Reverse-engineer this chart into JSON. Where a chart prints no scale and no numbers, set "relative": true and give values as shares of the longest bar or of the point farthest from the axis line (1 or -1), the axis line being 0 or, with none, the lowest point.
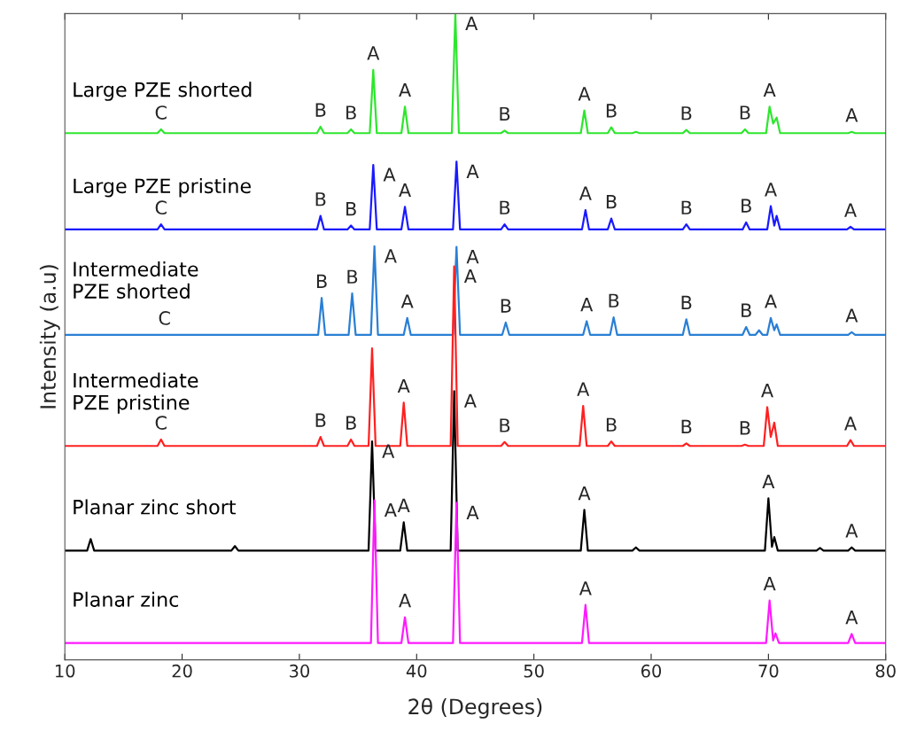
{
  "chart_data": {
    "type": "line",
    "relative": true,
    "xlabel": "2θ (Degrees)",
    "ylabel": "Intensity (a.u)",
    "xlim": [
      10,
      80
    ],
    "xticks": [
      10,
      20,
      30,
      40,
      50,
      60,
      70,
      80
    ],
    "legend": false,
    "grid": false,
    "marker": "none",
    "line_style": "solid",
    "series": [
      {
        "name": "Large PZE shorted",
        "color": "#2ee62e",
        "x": [
          10,
          17.9,
          18.2,
          18.5,
          31.5,
          31.8,
          32.1,
          34.1,
          34.4,
          34.7,
          36.0,
          36.3,
          36.6,
          38.7,
          39.0,
          39.3,
          43.0,
          43.3,
          43.6,
          47.2,
          47.5,
          47.8,
          54.0,
          54.3,
          54.6,
          56.3,
          56.6,
          56.9,
          58.4,
          58.7,
          59.0,
          62.7,
          63.0,
          63.3,
          67.7,
          68.0,
          68.3,
          69.8,
          70.1,
          70.4,
          70.7,
          71.0,
          76.8,
          77.1,
          77.4,
          80
        ],
        "values": [
          0.815,
          0.815,
          0.821,
          0.815,
          0.815,
          0.825,
          0.815,
          0.815,
          0.821,
          0.815,
          0.815,
          0.913,
          0.815,
          0.815,
          0.856,
          0.815,
          0.815,
          1.0,
          0.815,
          0.815,
          0.819,
          0.815,
          0.815,
          0.85,
          0.815,
          0.815,
          0.824,
          0.815,
          0.815,
          0.817,
          0.815,
          0.815,
          0.82,
          0.815,
          0.815,
          0.821,
          0.815,
          0.815,
          0.856,
          0.83,
          0.839,
          0.815,
          0.815,
          0.817,
          0.815,
          0.815
        ]
      },
      {
        "name": "Large PZE pristine",
        "color": "#1a1aff",
        "x": [
          10,
          17.9,
          18.2,
          18.5,
          31.5,
          31.8,
          32.1,
          34.1,
          34.4,
          34.7,
          36.0,
          36.3,
          36.6,
          38.7,
          39.0,
          39.3,
          43.1,
          43.4,
          43.7,
          47.2,
          47.5,
          47.8,
          54.1,
          54.4,
          54.7,
          56.3,
          56.6,
          56.9,
          62.7,
          63.0,
          63.3,
          67.8,
          68.1,
          68.4,
          69.9,
          70.2,
          70.5,
          70.7,
          71.0,
          76.7,
          77.0,
          77.3,
          80
        ],
        "values": [
          0.666,
          0.666,
          0.674,
          0.666,
          0.666,
          0.687,
          0.666,
          0.666,
          0.672,
          0.666,
          0.666,
          0.766,
          0.666,
          0.666,
          0.701,
          0.666,
          0.666,
          0.771,
          0.666,
          0.666,
          0.674,
          0.666,
          0.666,
          0.696,
          0.666,
          0.666,
          0.683,
          0.666,
          0.666,
          0.674,
          0.666,
          0.666,
          0.677,
          0.666,
          0.666,
          0.702,
          0.672,
          0.687,
          0.666,
          0.666,
          0.67,
          0.666,
          0.666
        ]
      },
      {
        "name": "Intermediate\nPZE shorted",
        "color": "#2a7fd4",
        "x": [
          10,
          31.6,
          31.9,
          32.2,
          34.2,
          34.5,
          34.8,
          36.1,
          36.4,
          36.7,
          38.9,
          39.2,
          39.5,
          43.1,
          43.4,
          43.7,
          47.3,
          47.6,
          47.9,
          54.2,
          54.5,
          54.8,
          56.5,
          56.8,
          57.1,
          62.7,
          63.0,
          63.3,
          67.8,
          68.1,
          68.4,
          68.9,
          69.2,
          69.5,
          69.9,
          70.2,
          70.5,
          70.7,
          71.0,
          76.8,
          77.1,
          77.4,
          80
        ],
        "values": [
          0.503,
          0.503,
          0.56,
          0.503,
          0.503,
          0.567,
          0.503,
          0.503,
          0.64,
          0.503,
          0.503,
          0.529,
          0.503,
          0.503,
          0.639,
          0.503,
          0.503,
          0.522,
          0.503,
          0.503,
          0.524,
          0.503,
          0.503,
          0.53,
          0.503,
          0.503,
          0.527,
          0.503,
          0.503,
          0.515,
          0.503,
          0.503,
          0.51,
          0.503,
          0.503,
          0.529,
          0.51,
          0.519,
          0.503,
          0.503,
          0.507,
          0.503,
          0.503
        ]
      },
      {
        "name": "Intermediate\nPZE pristine",
        "color": "#ff2020",
        "x": [
          10,
          17.9,
          18.2,
          18.5,
          31.5,
          31.8,
          32.1,
          34.1,
          34.4,
          34.7,
          35.9,
          36.2,
          36.5,
          38.6,
          38.9,
          39.2,
          42.9,
          43.2,
          43.5,
          47.2,
          47.5,
          47.8,
          53.9,
          54.2,
          54.5,
          56.3,
          56.6,
          56.9,
          62.7,
          63.0,
          63.3,
          67.7,
          68.0,
          68.3,
          69.6,
          69.9,
          70.2,
          70.5,
          70.8,
          76.7,
          77.0,
          77.3,
          80
        ],
        "values": [
          0.331,
          0.331,
          0.341,
          0.331,
          0.331,
          0.345,
          0.331,
          0.331,
          0.341,
          0.331,
          0.331,
          0.482,
          0.331,
          0.331,
          0.398,
          0.331,
          0.331,
          0.609,
          0.331,
          0.331,
          0.337,
          0.331,
          0.331,
          0.393,
          0.331,
          0.331,
          0.338,
          0.331,
          0.331,
          0.335,
          0.331,
          0.331,
          0.333,
          0.331,
          0.331,
          0.391,
          0.345,
          0.367,
          0.331,
          0.331,
          0.34,
          0.331,
          0.331
        ]
      },
      {
        "name": "Planar zinc short",
        "color": "#000000",
        "x": [
          10,
          11.9,
          12.2,
          12.5,
          24.2,
          24.5,
          24.8,
          35.9,
          36.2,
          36.5,
          38.6,
          38.9,
          39.2,
          42.9,
          43.2,
          43.5,
          54.0,
          54.3,
          54.6,
          58.4,
          58.7,
          59.0,
          69.7,
          70.0,
          70.3,
          70.5,
          70.8,
          74.1,
          74.4,
          74.7,
          76.8,
          77.1,
          77.4,
          80
        ],
        "values": [
          0.169,
          0.169,
          0.187,
          0.169,
          0.169,
          0.176,
          0.169,
          0.169,
          0.338,
          0.169,
          0.169,
          0.213,
          0.169,
          0.169,
          0.416,
          0.169,
          0.169,
          0.232,
          0.169,
          0.169,
          0.174,
          0.169,
          0.169,
          0.25,
          0.175,
          0.19,
          0.169,
          0.169,
          0.173,
          0.169,
          0.169,
          0.174,
          0.169,
          0.169
        ]
      },
      {
        "name": "Planar zinc",
        "color": "#ff1aff",
        "x": [
          10,
          36.1,
          36.4,
          36.7,
          38.7,
          39.0,
          39.3,
          43.1,
          43.4,
          43.7,
          54.1,
          54.4,
          54.7,
          69.8,
          70.1,
          70.4,
          70.6,
          70.9,
          76.8,
          77.1,
          77.4,
          80
        ],
        "values": [
          0.026,
          0.026,
          0.247,
          0.026,
          0.026,
          0.066,
          0.026,
          0.026,
          0.243,
          0.026,
          0.026,
          0.085,
          0.026,
          0.026,
          0.092,
          0.03,
          0.041,
          0.026,
          0.026,
          0.04,
          0.026,
          0.026
        ]
      }
    ],
    "annotations": [
      {
        "text": "C",
        "x": 18.2,
        "y": 0.821
      },
      {
        "text": "B",
        "x": 31.8,
        "y": 0.825
      },
      {
        "text": "B",
        "x": 34.4,
        "y": 0.821
      },
      {
        "text": "A",
        "x": 36.3,
        "y": 0.913
      },
      {
        "text": "A",
        "x": 39.0,
        "y": 0.856
      },
      {
        "text": "A",
        "x": 43.3,
        "y": 1.0
      },
      {
        "text": "B",
        "x": 47.5,
        "y": 0.819
      },
      {
        "text": "A",
        "x": 54.3,
        "y": 0.85
      },
      {
        "text": "B",
        "x": 56.6,
        "y": 0.824
      },
      {
        "text": "B",
        "x": 63.0,
        "y": 0.82
      },
      {
        "text": "B",
        "x": 68.0,
        "y": 0.821
      },
      {
        "text": "A",
        "x": 70.1,
        "y": 0.856
      },
      {
        "text": "A",
        "x": 77.1,
        "y": 0.817
      },
      {
        "text": "C",
        "x": 18.2,
        "y": 0.674
      },
      {
        "text": "B",
        "x": 31.8,
        "y": 0.687
      },
      {
        "text": "B",
        "x": 34.4,
        "y": 0.672
      },
      {
        "text": "A",
        "x": 36.3,
        "y": 0.766
      },
      {
        "text": "A",
        "x": 39.0,
        "y": 0.701
      },
      {
        "text": "A",
        "x": 43.4,
        "y": 0.771
      },
      {
        "text": "B",
        "x": 47.5,
        "y": 0.674
      },
      {
        "text": "A",
        "x": 54.4,
        "y": 0.696
      },
      {
        "text": "B",
        "x": 56.6,
        "y": 0.683
      },
      {
        "text": "B",
        "x": 63.0,
        "y": 0.674
      },
      {
        "text": "B",
        "x": 68.1,
        "y": 0.677
      },
      {
        "text": "A",
        "x": 70.2,
        "y": 0.702
      },
      {
        "text": "A",
        "x": 77.0,
        "y": 0.67
      },
      {
        "text": "C",
        "x": 18.5,
        "y": 0.503
      },
      {
        "text": "B",
        "x": 31.9,
        "y": 0.56
      },
      {
        "text": "B",
        "x": 34.5,
        "y": 0.567
      },
      {
        "text": "A",
        "x": 36.4,
        "y": 0.64
      },
      {
        "text": "A",
        "x": 39.2,
        "y": 0.529
      },
      {
        "text": "A",
        "x": 43.4,
        "y": 0.639
      },
      {
        "text": "B",
        "x": 47.6,
        "y": 0.522
      },
      {
        "text": "A",
        "x": 54.5,
        "y": 0.524
      },
      {
        "text": "B",
        "x": 56.8,
        "y": 0.53
      },
      {
        "text": "B",
        "x": 63.0,
        "y": 0.527
      },
      {
        "text": "B",
        "x": 68.1,
        "y": 0.515
      },
      {
        "text": "A",
        "x": 70.2,
        "y": 0.529
      },
      {
        "text": "A",
        "x": 77.1,
        "y": 0.507
      },
      {
        "text": "C",
        "x": 18.2,
        "y": 0.341
      },
      {
        "text": "B",
        "x": 31.8,
        "y": 0.345
      },
      {
        "text": "B",
        "x": 34.4,
        "y": 0.341
      },
      {
        "text": "A",
        "x": 38.9,
        "y": 0.398
      },
      {
        "text": "A",
        "x": 43.2,
        "y": 0.609
      },
      {
        "text": "B",
        "x": 47.5,
        "y": 0.337
      },
      {
        "text": "A",
        "x": 54.2,
        "y": 0.393
      },
      {
        "text": "B",
        "x": 56.6,
        "y": 0.338
      },
      {
        "text": "B",
        "x": 63.0,
        "y": 0.335
      },
      {
        "text": "B",
        "x": 68.0,
        "y": 0.333
      },
      {
        "text": "A",
        "x": 69.9,
        "y": 0.391
      },
      {
        "text": "A",
        "x": 77.0,
        "y": 0.34
      },
      {
        "text": "A",
        "x": 36.2,
        "y": 0.338
      },
      {
        "text": "A",
        "x": 38.9,
        "y": 0.213
      },
      {
        "text": "A",
        "x": 43.2,
        "y": 0.416
      },
      {
        "text": "A",
        "x": 54.3,
        "y": 0.232
      },
      {
        "text": "A",
        "x": 70.0,
        "y": 0.25
      },
      {
        "text": "A",
        "x": 77.1,
        "y": 0.174
      },
      {
        "text": "A",
        "x": 36.4,
        "y": 0.247
      },
      {
        "text": "A",
        "x": 39.0,
        "y": 0.066
      },
      {
        "text": "A",
        "x": 43.4,
        "y": 0.243
      },
      {
        "text": "A",
        "x": 54.4,
        "y": 0.085
      },
      {
        "text": "A",
        "x": 70.1,
        "y": 0.092
      },
      {
        "text": "A",
        "x": 77.1,
        "y": 0.04
      }
    ]
  }
}
